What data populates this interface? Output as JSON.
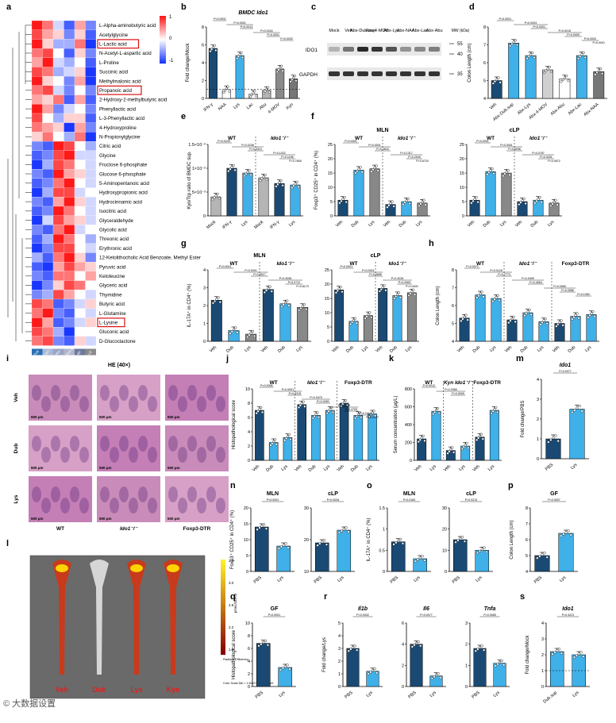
{
  "panel_letters": [
    "a",
    "b",
    "c",
    "d",
    "e",
    "f",
    "g",
    "h",
    "i",
    "j",
    "k",
    "l",
    "m",
    "n",
    "o",
    "p",
    "q",
    "r",
    "s"
  ],
  "heatmap": {
    "columns": [
      "Dub",
      "CMC",
      "Abx",
      "Abx-Dub.sup",
      "BF",
      "LB"
    ],
    "colorbar_ticks": [
      "1",
      "0",
      "-1"
    ],
    "rows": [
      "L-Alpha-aminobutyric acid",
      "Acetylglycine",
      "L-Lactic acid",
      "N-Acetyl-L-aspartic acid",
      "L-Proline",
      "Succinic acid",
      "Methylmalonic acid",
      "Propanoic acid",
      "2-Hydroxy-2-methylbutyric acid",
      "Phenyllactic acid",
      "L-3-Phenyllactic acid",
      "4-Hydroxyproline",
      "N-Propionylglycine",
      "Citric acid",
      "Glycine",
      "Fructose 6-phosphate",
      "Glucose 6-phosphate",
      "5-Aminopentanoic acid",
      "Hydroxypropionic acid",
      "Hydrocinnamic acid",
      "Isocitric acid",
      "Glyceraldehyde",
      "Glycolic acid",
      "Threonic acid",
      "Erythronic acid",
      "12-Ketolithocholic Acid Benzoate, Methyl Ester",
      "Pyruvic acid",
      "Ketoleucine",
      "Glyceric acid",
      "Thymidine",
      "Butyric acid",
      "L-Glutamine",
      "L-Lysine",
      "Gluconic acid",
      "D-Glucoclactone"
    ],
    "highlighted": [
      "L-Lactic acid",
      "Propanoic acid",
      "L-Lysine"
    ],
    "values": [
      [
        1,
        0.6,
        -0.2,
        -0.8,
        0.4,
        -0.6
      ],
      [
        0.8,
        0.4,
        0.2,
        -0.6,
        0.2,
        -0.8
      ],
      [
        1,
        0.2,
        -0.4,
        -0.4,
        0.6,
        -1
      ],
      [
        0.6,
        0.8,
        0,
        -0.8,
        0.2,
        -0.6
      ],
      [
        0.4,
        1,
        -0.2,
        -0.4,
        0,
        -0.8
      ],
      [
        0.8,
        0.6,
        -0.4,
        -0.2,
        0.2,
        -1
      ],
      [
        1,
        0.2,
        0,
        -0.6,
        0.4,
        -1
      ],
      [
        0.6,
        0.8,
        -0.2,
        -0.6,
        0,
        -0.6
      ],
      [
        0.4,
        0.2,
        0.6,
        -0.8,
        0.4,
        -0.8
      ],
      [
        1,
        0.4,
        -0.6,
        -0.2,
        0,
        -0.6
      ],
      [
        0.8,
        0,
        -0.4,
        0.2,
        0.2,
        -0.8
      ],
      [
        0.6,
        0.4,
        0.2,
        -1,
        0.4,
        -0.6
      ],
      [
        0.2,
        0.6,
        0,
        -0.4,
        0.6,
        -1
      ],
      [
        -0.6,
        -0.8,
        1,
        0.8,
        0,
        -0.4
      ],
      [
        -0.8,
        -0.6,
        0.8,
        1,
        -0.2,
        -0.2
      ],
      [
        -1,
        -0.4,
        0.8,
        0.6,
        0,
        -0.2
      ],
      [
        -0.6,
        -0.8,
        1,
        0.4,
        0.2,
        -0.2
      ],
      [
        -0.8,
        -0.6,
        0.6,
        1,
        0,
        -0.2
      ],
      [
        -1,
        -0.4,
        0.8,
        0.8,
        -0.2,
        0
      ],
      [
        -0.6,
        -0.8,
        0.4,
        1,
        0.2,
        -0.2
      ],
      [
        -0.8,
        -0.6,
        1,
        0.6,
        0,
        -0.2
      ],
      [
        -1,
        -0.2,
        0.8,
        0.4,
        0.2,
        -0.2
      ],
      [
        -0.6,
        -0.8,
        0.6,
        1,
        -0.2,
        0
      ],
      [
        -0.8,
        -0.4,
        1,
        0.6,
        0,
        -0.4
      ],
      [
        -1,
        -0.6,
        0.8,
        0.8,
        0,
        -0.2
      ],
      [
        -0.4,
        -0.8,
        0.6,
        1,
        0.2,
        -0.6
      ],
      [
        -0.8,
        -1,
        0.4,
        0.8,
        0.4,
        0.2
      ],
      [
        -0.6,
        -0.8,
        0.6,
        0.6,
        0,
        0.4
      ],
      [
        -1,
        -0.6,
        0.2,
        0.8,
        0.6,
        0
      ],
      [
        -0.6,
        -0.4,
        0.8,
        0.4,
        0,
        -0.2
      ],
      [
        0.8,
        0.6,
        -0.8,
        -0.6,
        -0.2,
        0.2
      ],
      [
        0.6,
        1,
        -0.6,
        -0.8,
        0,
        -0.2
      ],
      [
        1,
        0.4,
        -0.8,
        -0.6,
        -0.2,
        0.2
      ],
      [
        0.8,
        0.6,
        -0.4,
        -1,
        0,
        0
      ],
      [
        0.6,
        0.8,
        -0.6,
        -0.8,
        0.2,
        -0.2
      ]
    ]
  },
  "blot": {
    "lanes": [
      "Mock",
      "Veh",
      "Abx-Dub.sup",
      "Abx-4-MOV",
      "Abx-Lys",
      "Abx-NAA",
      "Abx-Lac",
      "Abx-Abu"
    ],
    "bands": [
      "IDO1",
      "GAPDH"
    ],
    "mw_label": "MW (kDa)",
    "mw": [
      "55",
      "40",
      "35"
    ]
  },
  "histology": {
    "title": "HE (40×)",
    "rows": [
      "Veh",
      "Dub",
      "Lys"
    ],
    "cols": [
      "WT",
      "Ido1⁻/⁻",
      "Foxp3-DTR"
    ],
    "scale": "500 μm"
  },
  "imaging": {
    "labels": [
      "Veh",
      "Dub",
      "Lys",
      "Kyn"
    ],
    "scale_ticks": [
      "3.4",
      "3.0",
      "2.6",
      "2.2",
      "1.8"
    ],
    "unit": "p/sec/cm²/sr",
    "scale_caption": "Radiant Efficiency",
    "caption": "Color Scale Min = 1.50e9 Max = 3.45e9"
  },
  "watermark": "© 大数据设置",
  "chart_data": [
    {
      "id": "b",
      "type": "bar",
      "title": "BMDC Ido1",
      "ylabel": "Fold change/Mock",
      "categories": [
        "IFN-γ",
        "NAA",
        "Lys",
        "Lac",
        "Abu",
        "4-MOV",
        "Kyn"
      ],
      "values": [
        5.6,
        1.0,
        4.8,
        0.5,
        0.9,
        3.3,
        2.2
      ],
      "ylim": [
        0,
        8
      ],
      "yticks": [
        0,
        2,
        4,
        6,
        8
      ],
      "ref_line": 1,
      "colors": [
        "#1a4a73",
        "#ffffff",
        "#3fb0e8",
        "#ffffff",
        "#b5b5b5",
        "#8a8a8a",
        "#777777"
      ],
      "pvals": [
        "P<0.0001",
        "P<0.0001",
        "P<0.0013",
        "P=0.0244",
        "P=0.0001",
        "P=0.0032"
      ]
    },
    {
      "id": "d",
      "type": "bar",
      "title": "",
      "ylabel": "Colon Length (cm)",
      "categories": [
        "Veh",
        "Abx-Dub.sup",
        "Abx-Lys",
        "Abx-4-MOV",
        "Abx-Abu",
        "Abx-Lac",
        "Abx-NAA"
      ],
      "values": [
        5.0,
        7.1,
        6.4,
        5.6,
        5.1,
        6.4,
        5.5
      ],
      "ylim": [
        4,
        8
      ],
      "yticks": [
        4,
        5,
        6,
        7,
        8
      ],
      "colors": [
        "#1a4a73",
        "#3fb0e8",
        "#3fb0e8",
        "#d0d0d0",
        "#ffffff",
        "#3fb0e8",
        "#777777"
      ],
      "pvals": [
        "P<0.0001",
        "P=0.0004",
        "P<0.0001",
        "P=0.0015",
        "P=0.0009",
        "P=0.0002",
        "P=0.0001"
      ]
    },
    {
      "id": "e",
      "type": "bar",
      "title": "",
      "ylabel": "Kyn/Trp ratio of BMDC sup.",
      "categories": [
        "Mock",
        "IFN-γ",
        "Lys",
        "Mock",
        "IFN-γ",
        "Lys"
      ],
      "groups": [
        "WT",
        "Ido1⁻/⁻"
      ],
      "values": [
        4,
        10,
        9,
        8,
        6.8,
        6.5
      ],
      "ylim": [
        0,
        15
      ],
      "yticks": [
        "0",
        "5×10⁻³",
        "1×10⁻²",
        "1.5×10⁻²"
      ],
      "colors": [
        "#b5b5b5",
        "#1a4a73",
        "#3fb0e8",
        "#b5b5b5",
        "#1a4a73",
        "#3fb0e8"
      ],
      "pvals": [
        "P=0.0249",
        "P=0.0238",
        "P=0.2010",
        "P=0.1022",
        "P=0.1196",
        "P=0.7805"
      ]
    },
    {
      "id": "f1",
      "type": "bar",
      "title": "MLN",
      "ylabel": "Foxp3⁺ CD25⁺ in CD4⁺ (%)",
      "categories": [
        "Veh",
        "Dub",
        "Lys",
        "Veh",
        "Dub",
        "Lys"
      ],
      "groups": [
        "WT",
        "Ido1⁻/⁻"
      ],
      "values": [
        5.5,
        16,
        16.5,
        4,
        5,
        4.5
      ],
      "ylim": [
        0,
        25
      ],
      "yticks": [
        0,
        5,
        10,
        15,
        20,
        25
      ],
      "colors": [
        "#1a4a73",
        "#3fb0e8",
        "#888888",
        "#1a4a73",
        "#3fb0e8",
        "#888888"
      ],
      "pvals": [
        "P<0.0001",
        "P<0.0001",
        "P=0.2816",
        "P=0.1317",
        "P=0.2949",
        "P=0.6733"
      ]
    },
    {
      "id": "f2",
      "type": "bar",
      "title": "cLP",
      "ylabel": "",
      "categories": [
        "Veh",
        "Dub",
        "Lys",
        "Veh",
        "Dub",
        "Lys"
      ],
      "groups": [
        "WT",
        "Ido1⁻/⁻"
      ],
      "values": [
        5.5,
        15.5,
        15,
        5,
        5.5,
        4.5
      ],
      "ylim": [
        0,
        25
      ],
      "yticks": [
        0,
        5,
        10,
        15,
        20,
        25
      ],
      "colors": [
        "#1a4a73",
        "#3fb0e8",
        "#888888",
        "#1a4a73",
        "#3fb0e8",
        "#888888"
      ],
      "pvals": [
        "P<0.0001",
        "P<0.0001",
        "P=0.5098",
        "P=0.0787",
        "P=0.0001",
        "P=0.0672"
      ]
    },
    {
      "id": "g1",
      "type": "bar",
      "title": "MLN",
      "ylabel": "IL-17A⁺ in CD4⁺ (%)",
      "categories": [
        "Veh",
        "Dub",
        "Lys",
        "Veh",
        "Dub",
        "Lys"
      ],
      "groups": [
        "WT",
        "Ido1⁻/⁻"
      ],
      "values": [
        2.3,
        0.6,
        0.4,
        2.9,
        2.1,
        1.9
      ],
      "ylim": [
        0,
        4
      ],
      "yticks": [
        0,
        1,
        2,
        3,
        4
      ],
      "colors": [
        "#1a4a73",
        "#3fb0e8",
        "#888888",
        "#1a4a73",
        "#3fb0e8",
        "#888888"
      ],
      "pvals": [
        "P<0.0001",
        "P<0.0001",
        "P=0.5017",
        "P=0.0006",
        "P=0.0712",
        "P=0.8173"
      ]
    },
    {
      "id": "g2",
      "type": "bar",
      "title": "cLP",
      "ylabel": "",
      "categories": [
        "Veh",
        "Dub",
        "Lys",
        "Veh",
        "Dub",
        "Lys"
      ],
      "groups": [
        "WT",
        "Ido1⁻/⁻"
      ],
      "values": [
        18,
        7,
        9,
        18.5,
        16,
        17
      ],
      "ylim": [
        0,
        25
      ],
      "yticks": [
        0,
        5,
        10,
        15,
        20,
        25
      ],
      "colors": [
        "#1a4a73",
        "#3fb0e8",
        "#888888",
        "#1a4a73",
        "#3fb0e8",
        "#888888"
      ],
      "pvals": [
        "P<0.0001",
        "P<0.0001",
        "P=0.0685",
        "P=0.3235",
        "P=0.0063",
        "P=0.0400"
      ]
    },
    {
      "id": "h",
      "type": "bar",
      "title": "",
      "ylabel": "Colon Length (cm)",
      "categories": [
        "Veh",
        "Dub",
        "Lys",
        "Veh",
        "Dub",
        "Lys",
        "Veh",
        "Dub",
        "Lys"
      ],
      "groups": [
        "WT",
        "Ido1⁻/⁻",
        "Foxp3-DTR"
      ],
      "values": [
        5.3,
        6.6,
        6.4,
        5.2,
        5.6,
        5.1,
        5.0,
        5.4,
        5.5
      ],
      "ylim": [
        4,
        8
      ],
      "yticks": [
        4,
        5,
        6,
        7,
        8
      ],
      "colors": [
        "#1a4a73",
        "#3fb0e8",
        "#3fb0e8",
        "#1a4a73",
        "#3fb0e8",
        "#3fb0e8",
        "#1a4a73",
        "#3fb0e8",
        "#3fb0e8"
      ],
      "pvals": [
        "P=0.0072",
        "P=0.0128",
        "P=0.7773",
        "P=0.9499",
        "P=0.4654",
        "P=0.0965",
        "P=0.0588",
        "P=0.1060"
      ]
    },
    {
      "id": "j",
      "type": "bar",
      "title": "",
      "ylabel": "Histopathological score",
      "categories": [
        "Veh",
        "Dub",
        "Lys",
        "Veh",
        "Dub",
        "Lys",
        "Veh",
        "Dub",
        "Lys"
      ],
      "groups": [
        "WT",
        "Ido1⁻/⁻",
        "Foxp3-DTR"
      ],
      "values": [
        7.0,
        2.5,
        3.2,
        7.8,
        6.3,
        7.0,
        8.0,
        6.3,
        6.5
      ],
      "ylim": [
        0,
        10
      ],
      "yticks": [
        0,
        2,
        4,
        6,
        8,
        10
      ],
      "colors": [
        "#1a4a73",
        "#3fb0e8",
        "#3fb0e8",
        "#1a4a73",
        "#3fb0e8",
        "#3fb0e8",
        "#1a4a73",
        "#3fb0e8",
        "#3fb0e8"
      ],
      "pvals": [
        "P=0.0008",
        "P=0.0001",
        "P=0.3315",
        "P=0.3475",
        "P=0.0050",
        "P=0.6479",
        "P=0.4709",
        "P=0.2412",
        "P=0.2177"
      ]
    },
    {
      "id": "k",
      "type": "bar",
      "title": "",
      "ylabel": "Serum concentration (μg/L)",
      "categories": [
        "Veh",
        "Lys",
        "Veh",
        "Lys",
        "Veh",
        "Lys"
      ],
      "groups": [
        "WT",
        "Kyn Ido1⁻/⁻",
        "Foxp3-DTR"
      ],
      "values": [
        240,
        550,
        110,
        160,
        260,
        560
      ],
      "ylim": [
        0,
        800
      ],
      "yticks": [
        0,
        200,
        400,
        600,
        800
      ],
      "colors": [
        "#1a4a73",
        "#3fb0e8",
        "#1a4a73",
        "#3fb0e8",
        "#1a4a73",
        "#3fb0e8"
      ],
      "pvals": [
        "P=0.0012",
        "P=0.2958",
        "P=0.0009"
      ]
    },
    {
      "id": "m",
      "type": "bar",
      "title": "Ido1",
      "ylabel": "Fold change/PBS",
      "categories": [
        "PBS",
        "Lys"
      ],
      "values": [
        1.0,
        2.5
      ],
      "ylim": [
        0,
        4
      ],
      "yticks": [
        0,
        1,
        2,
        3,
        4
      ],
      "colors": [
        "#1a4a73",
        "#3fb0e8"
      ],
      "pvals": [
        "P=0.0077"
      ]
    },
    {
      "id": "n1",
      "type": "bar",
      "title": "MLN",
      "ylabel": "Foxp3⁺ CD25⁺ in CD4⁺ (%)",
      "categories": [
        "PBS",
        "Lys"
      ],
      "values": [
        14,
        8
      ],
      "ylim": [
        0,
        20
      ],
      "yticks": [
        0,
        5,
        10,
        15,
        20
      ],
      "colors": [
        "#1a4a73",
        "#3fb0e8"
      ],
      "pvals": [
        "P<0.0001"
      ]
    },
    {
      "id": "n2",
      "type": "bar",
      "title": "cLP",
      "ylabel": "",
      "categories": [
        "PBS",
        "Lys"
      ],
      "values": [
        19,
        23
      ],
      "ylim": [
        10,
        30
      ],
      "yticks": [
        10,
        20,
        30
      ],
      "colors": [
        "#1a4a73",
        "#3fb0e8"
      ],
      "pvals": [
        "P=0.0026"
      ]
    },
    {
      "id": "o1",
      "type": "bar",
      "title": "MLN",
      "ylabel": "IL-17A⁺ in CD4⁺ (%)",
      "categories": [
        "PBS",
        "Lys"
      ],
      "values": [
        0.7,
        0.3
      ],
      "ylim": [
        0,
        1.5
      ],
      "yticks": [
        0,
        0.5,
        1,
        1.5
      ],
      "colors": [
        "#1a4a73",
        "#3fb0e8"
      ],
      "pvals": [
        "P=0.0183"
      ]
    },
    {
      "id": "o2",
      "type": "bar",
      "title": "cLP",
      "ylabel": "",
      "categories": [
        "PBS",
        "Lys"
      ],
      "values": [
        15,
        10
      ],
      "ylim": [
        0,
        30
      ],
      "yticks": [
        0,
        10,
        20,
        30
      ],
      "colors": [
        "#1a4a73",
        "#3fb0e8"
      ],
      "pvals": [
        "P=0.0213"
      ]
    },
    {
      "id": "p",
      "type": "bar",
      "title": "GF",
      "ylabel": "Colon Length (cm)",
      "categories": [
        "PBS",
        "Lys"
      ],
      "values": [
        5.0,
        6.4
      ],
      "ylim": [
        4,
        8
      ],
      "yticks": [
        4,
        5,
        6,
        7,
        8
      ],
      "colors": [
        "#1a4a73",
        "#3fb0e8"
      ],
      "pvals": [
        "P=0.0007"
      ]
    },
    {
      "id": "q",
      "type": "bar",
      "title": "GF",
      "ylabel": "Histopathological score",
      "categories": [
        "PBS",
        "Lys"
      ],
      "values": [
        6.8,
        3.0
      ],
      "ylim": [
        0,
        10
      ],
      "yticks": [
        0,
        2,
        4,
        6,
        8,
        10
      ],
      "colors": [
        "#1a4a73",
        "#3fb0e8"
      ],
      "pvals": [
        "P<0.0001"
      ]
    },
    {
      "id": "r1",
      "type": "bar",
      "title": "Il1b",
      "ylabel": "Fold change/Lys",
      "categories": [
        "PBS",
        "Lys"
      ],
      "values": [
        3.0,
        1.2
      ],
      "ylim": [
        0,
        5
      ],
      "yticks": [
        0,
        1,
        2,
        3,
        4,
        5
      ],
      "colors": [
        "#1a4a73",
        "#3fb0e8"
      ],
      "pvals": [
        "P=0.0002"
      ]
    },
    {
      "id": "r2",
      "type": "bar",
      "title": "Il6",
      "ylabel": "",
      "categories": [
        "PBS",
        "Lys"
      ],
      "values": [
        4.0,
        1.0
      ],
      "ylim": [
        0,
        6
      ],
      "yticks": [
        0,
        2,
        4,
        6
      ],
      "colors": [
        "#1a4a73",
        "#3fb0e8"
      ],
      "pvals": [
        "P=0.0077"
      ]
    },
    {
      "id": "r3",
      "type": "bar",
      "title": "Tnfa",
      "ylabel": "",
      "categories": [
        "PBS",
        "Lys"
      ],
      "values": [
        1.8,
        1.1
      ],
      "ylim": [
        0,
        3
      ],
      "yticks": [
        0,
        1,
        2,
        3
      ],
      "colors": [
        "#1a4a73",
        "#3fb0e8"
      ],
      "pvals": [
        "P=0.0065"
      ]
    },
    {
      "id": "s",
      "type": "bar",
      "title": "Ido1",
      "ylabel": "Fold change/Mock",
      "categories": [
        "Dub.sup",
        "Lys"
      ],
      "values": [
        2.2,
        2.0
      ],
      "ylim": [
        0,
        4
      ],
      "yticks": [
        0,
        1,
        2,
        3,
        4
      ],
      "ref_line": 1,
      "colors": [
        "#3fb0e8",
        "#3fb0e8"
      ],
      "pvals": [
        "P=0.4221"
      ]
    }
  ]
}
